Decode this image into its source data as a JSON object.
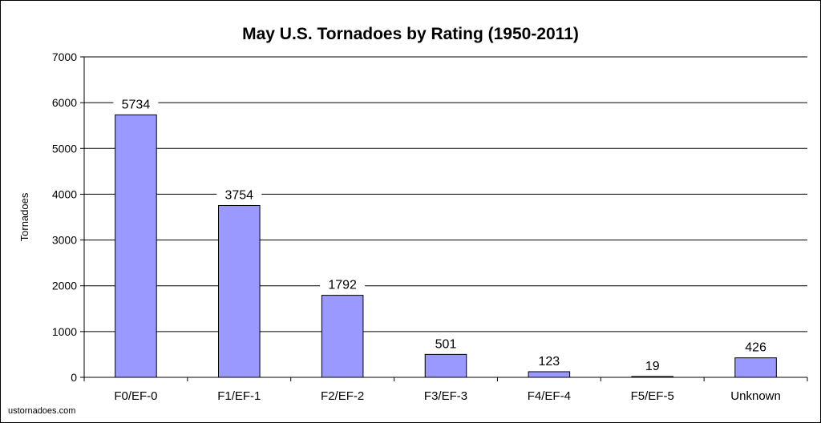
{
  "chart_data": {
    "type": "bar",
    "title": "May U.S. Tornadoes by Rating (1950-2011)",
    "xlabel": "",
    "ylabel": "Tornadoes",
    "categories": [
      "F0/EF-0",
      "F1/EF-1",
      "F2/EF-2",
      "F3/EF-3",
      "F4/EF-4",
      "F5/EF-5",
      "Unknown"
    ],
    "values": [
      5734,
      3754,
      1792,
      501,
      123,
      19,
      426
    ],
    "ylim": [
      0,
      7000
    ],
    "yticks": [
      0,
      1000,
      2000,
      3000,
      4000,
      5000,
      6000,
      7000
    ],
    "grid": true,
    "legend": "none",
    "bar_color": "#9999ff",
    "data_labels": true
  },
  "credit": "ustornadoes.com"
}
